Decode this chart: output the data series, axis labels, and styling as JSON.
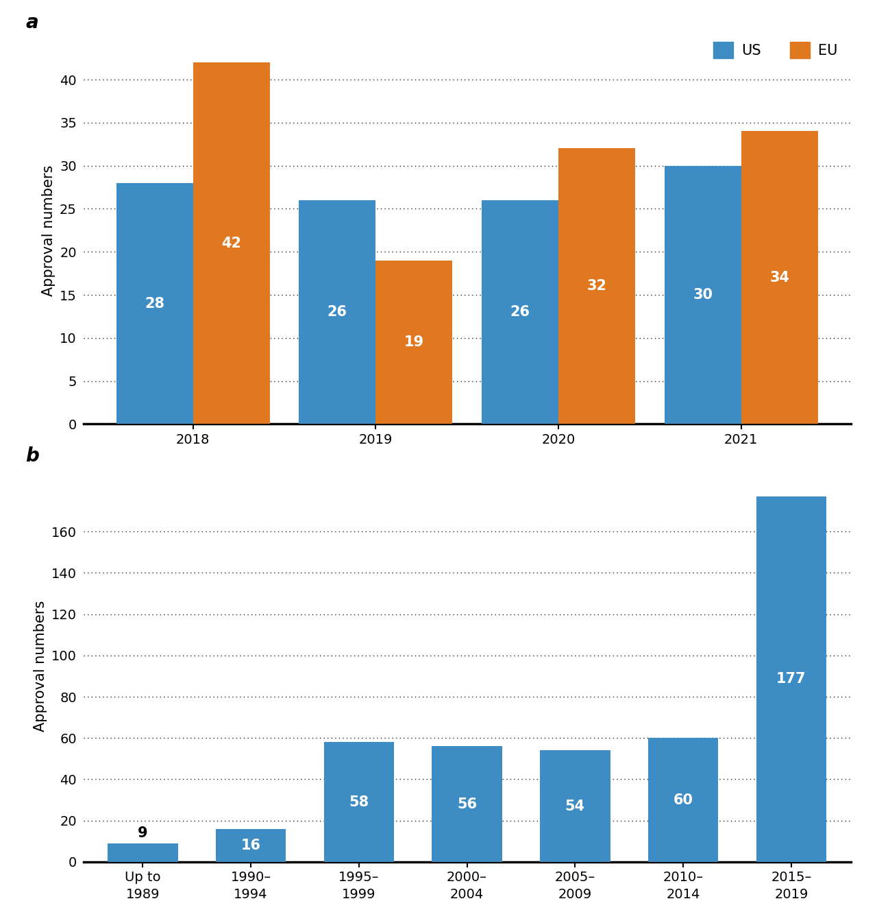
{
  "panel_a": {
    "years": [
      "2018",
      "2019",
      "2020",
      "2021"
    ],
    "us_values": [
      28,
      26,
      26,
      30
    ],
    "eu_values": [
      42,
      19,
      32,
      34
    ],
    "us_color": "#3d8dc4",
    "eu_color": "#e07820",
    "ylabel": "Approval numbers",
    "ylim": [
      0,
      45
    ],
    "yticks": [
      0,
      5,
      10,
      15,
      20,
      25,
      30,
      35,
      40
    ],
    "legend_labels": [
      "US",
      "EU"
    ],
    "label_fontsize": 15,
    "tick_fontsize": 14,
    "bar_label_fontsize": 15,
    "bar_width": 0.42
  },
  "panel_b": {
    "categories": [
      "Up to\n1989",
      "1990–\n1994",
      "1995–\n1999",
      "2000–\n2004",
      "2005–\n2009",
      "2010–\n2014",
      "2015–\n2019"
    ],
    "values": [
      9,
      16,
      58,
      56,
      54,
      60,
      177
    ],
    "bar_color": "#3d8dc4",
    "ylabel": "Approval numbers",
    "ylim": [
      0,
      190
    ],
    "yticks": [
      0,
      20,
      40,
      60,
      80,
      100,
      120,
      140,
      160
    ],
    "label_fontsize": 15,
    "tick_fontsize": 14,
    "bar_label_fontsize": 15,
    "bar_width": 0.65
  },
  "panel_label_fontsize": 20,
  "background_color": "#ffffff",
  "grid_color": "#222222",
  "bar_text_color": "#ffffff",
  "bar_text_color_dark": "#000000"
}
